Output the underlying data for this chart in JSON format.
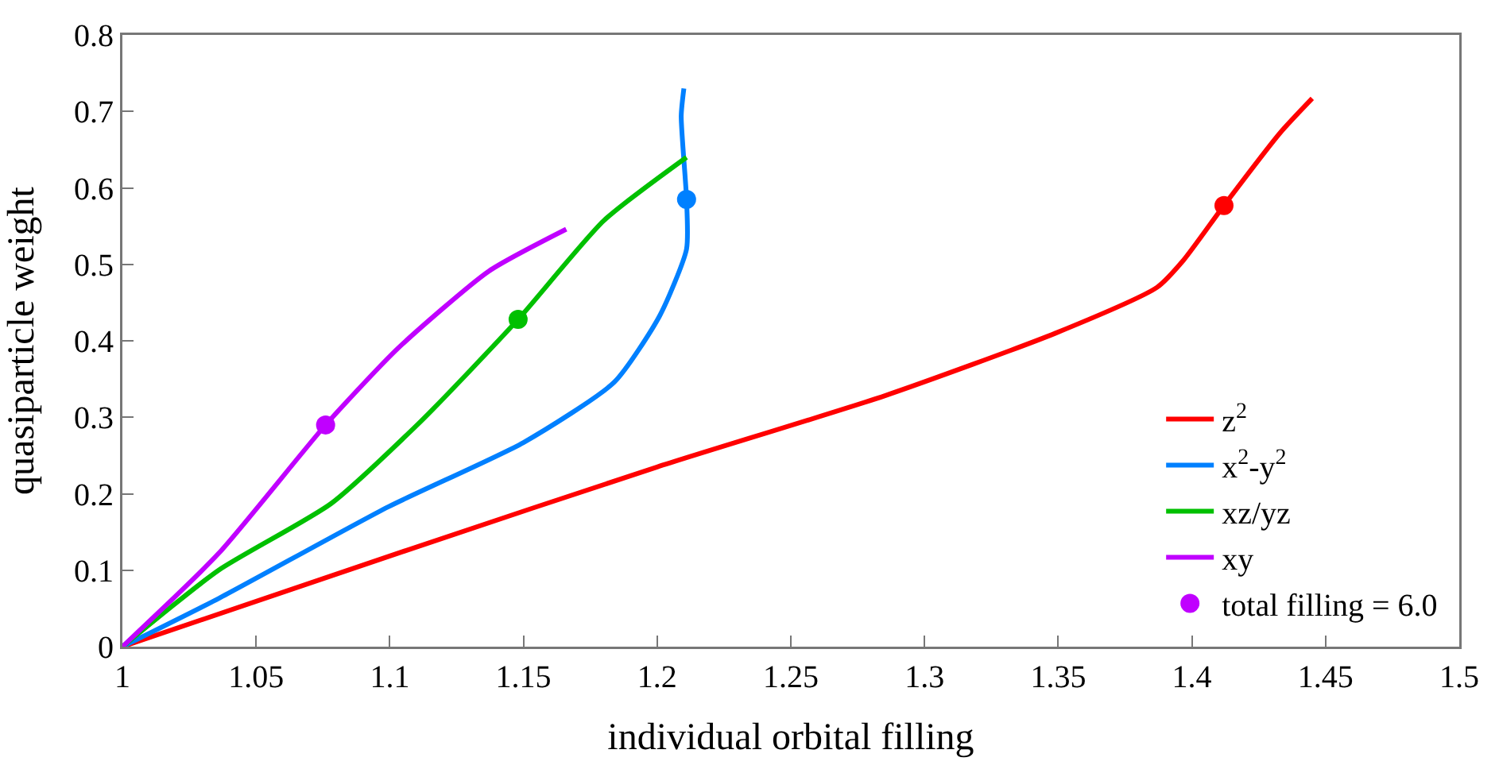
{
  "chart_data": {
    "type": "line",
    "xlabel": "individual orbital filling",
    "ylabel": "quasiparticle weight",
    "xlim": [
      1,
      1.5
    ],
    "xticks": [
      1,
      1.05,
      1.1,
      1.15,
      1.2,
      1.25,
      1.3,
      1.35,
      1.4,
      1.45,
      1.5
    ],
    "ylim": [
      0,
      0.8
    ],
    "yticks": [
      0,
      0.1,
      0.2,
      0.3,
      0.4,
      0.5,
      0.6,
      0.7,
      0.8
    ],
    "grid": false,
    "legend": "bottom right",
    "marker": "none",
    "line_style": "solid",
    "series": [
      {
        "name": "z$^{2}$",
        "color": "#ff0000",
        "x": [
          1,
          1.108,
          1.2,
          1.285,
          1.349,
          1.387,
          1.397,
          1.412,
          1.433,
          1.445
        ],
        "values": [
          0,
          0.128,
          0.235,
          0.328,
          0.41,
          0.47,
          0.506,
          0.577,
          0.672,
          0.717
        ]
      },
      {
        "name": "x$^{2}$-y$^{2}$",
        "color": "#0080ff",
        "x": [
          1,
          1.036,
          1.0995,
          1.15,
          1.184,
          1.201,
          1.211,
          1.211,
          1.209,
          1.21
        ],
        "values": [
          0,
          0.063,
          0.183,
          0.267,
          0.346,
          0.433,
          0.52,
          0.585,
          0.694,
          0.73
        ]
      },
      {
        "name": "xz/yz",
        "color": "#00c000",
        "x": [
          1,
          1.036,
          1.078,
          1.112,
          1.148,
          1.18,
          1.211
        ],
        "values": [
          0,
          0.1,
          0.187,
          0.296,
          0.428,
          0.557,
          0.64
        ]
      },
      {
        "name": "xy",
        "color": "#c000ff",
        "x": [
          1,
          1.036,
          1.076,
          1.103,
          1.137,
          1.166
        ],
        "values": [
          0,
          0.122,
          0.29,
          0.39,
          0.491,
          0.546
        ]
      },
      {
        "name": "total filling = 6.0",
        "type": "scatter",
        "marker": "circle",
        "colors": [
          "#c000ff",
          "#00c000",
          "#0080ff",
          "#ff0000"
        ],
        "x": [
          1.076,
          1.148,
          1.211,
          1.412
        ],
        "values": [
          0.29,
          0.428,
          0.585,
          0.577
        ]
      }
    ]
  }
}
